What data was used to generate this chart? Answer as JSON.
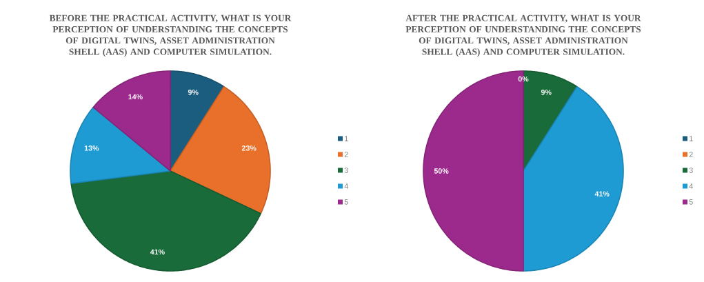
{
  "chart_data": [
    {
      "type": "pie",
      "title": "BEFORE THE PRACTICAL ACTIVITY, WHAT IS YOUR PERCEPTION OF UNDERSTANDING THE CONCEPTS OF DIGITAL TWINS, ASSET ADMINISTRATION SHELL (AAS) AND COMPUTER SIMULATION.",
      "categories": [
        "1",
        "2",
        "3",
        "4",
        "5"
      ],
      "values": [
        9,
        23,
        41,
        13,
        14
      ],
      "value_labels": [
        "9%",
        "23%",
        "41%",
        "13%",
        "14%"
      ],
      "colors": [
        "#1a5d7e",
        "#e8702a",
        "#196b3a",
        "#1f9bd4",
        "#9c2a8c"
      ],
      "legend": "right"
    },
    {
      "type": "pie",
      "title": "AFTER THE PRACTICAL ACTIVITY, WHAT IS YOUR PERCEPTION OF UNDERSTANDING THE CONCEPTS OF DIGITAL TWINS, ASSET ADMINISTRATION SHELL (AAS) AND COMPUTER SIMULATION.",
      "categories": [
        "1",
        "2",
        "3",
        "4",
        "5"
      ],
      "values": [
        0,
        0,
        9,
        41,
        50
      ],
      "value_labels": [
        "0%",
        null,
        "9%",
        "41%",
        "50%"
      ],
      "colors": [
        "#1a5d7e",
        "#e8702a",
        "#196b3a",
        "#1f9bd4",
        "#9c2a8c"
      ],
      "legend": "right"
    }
  ]
}
